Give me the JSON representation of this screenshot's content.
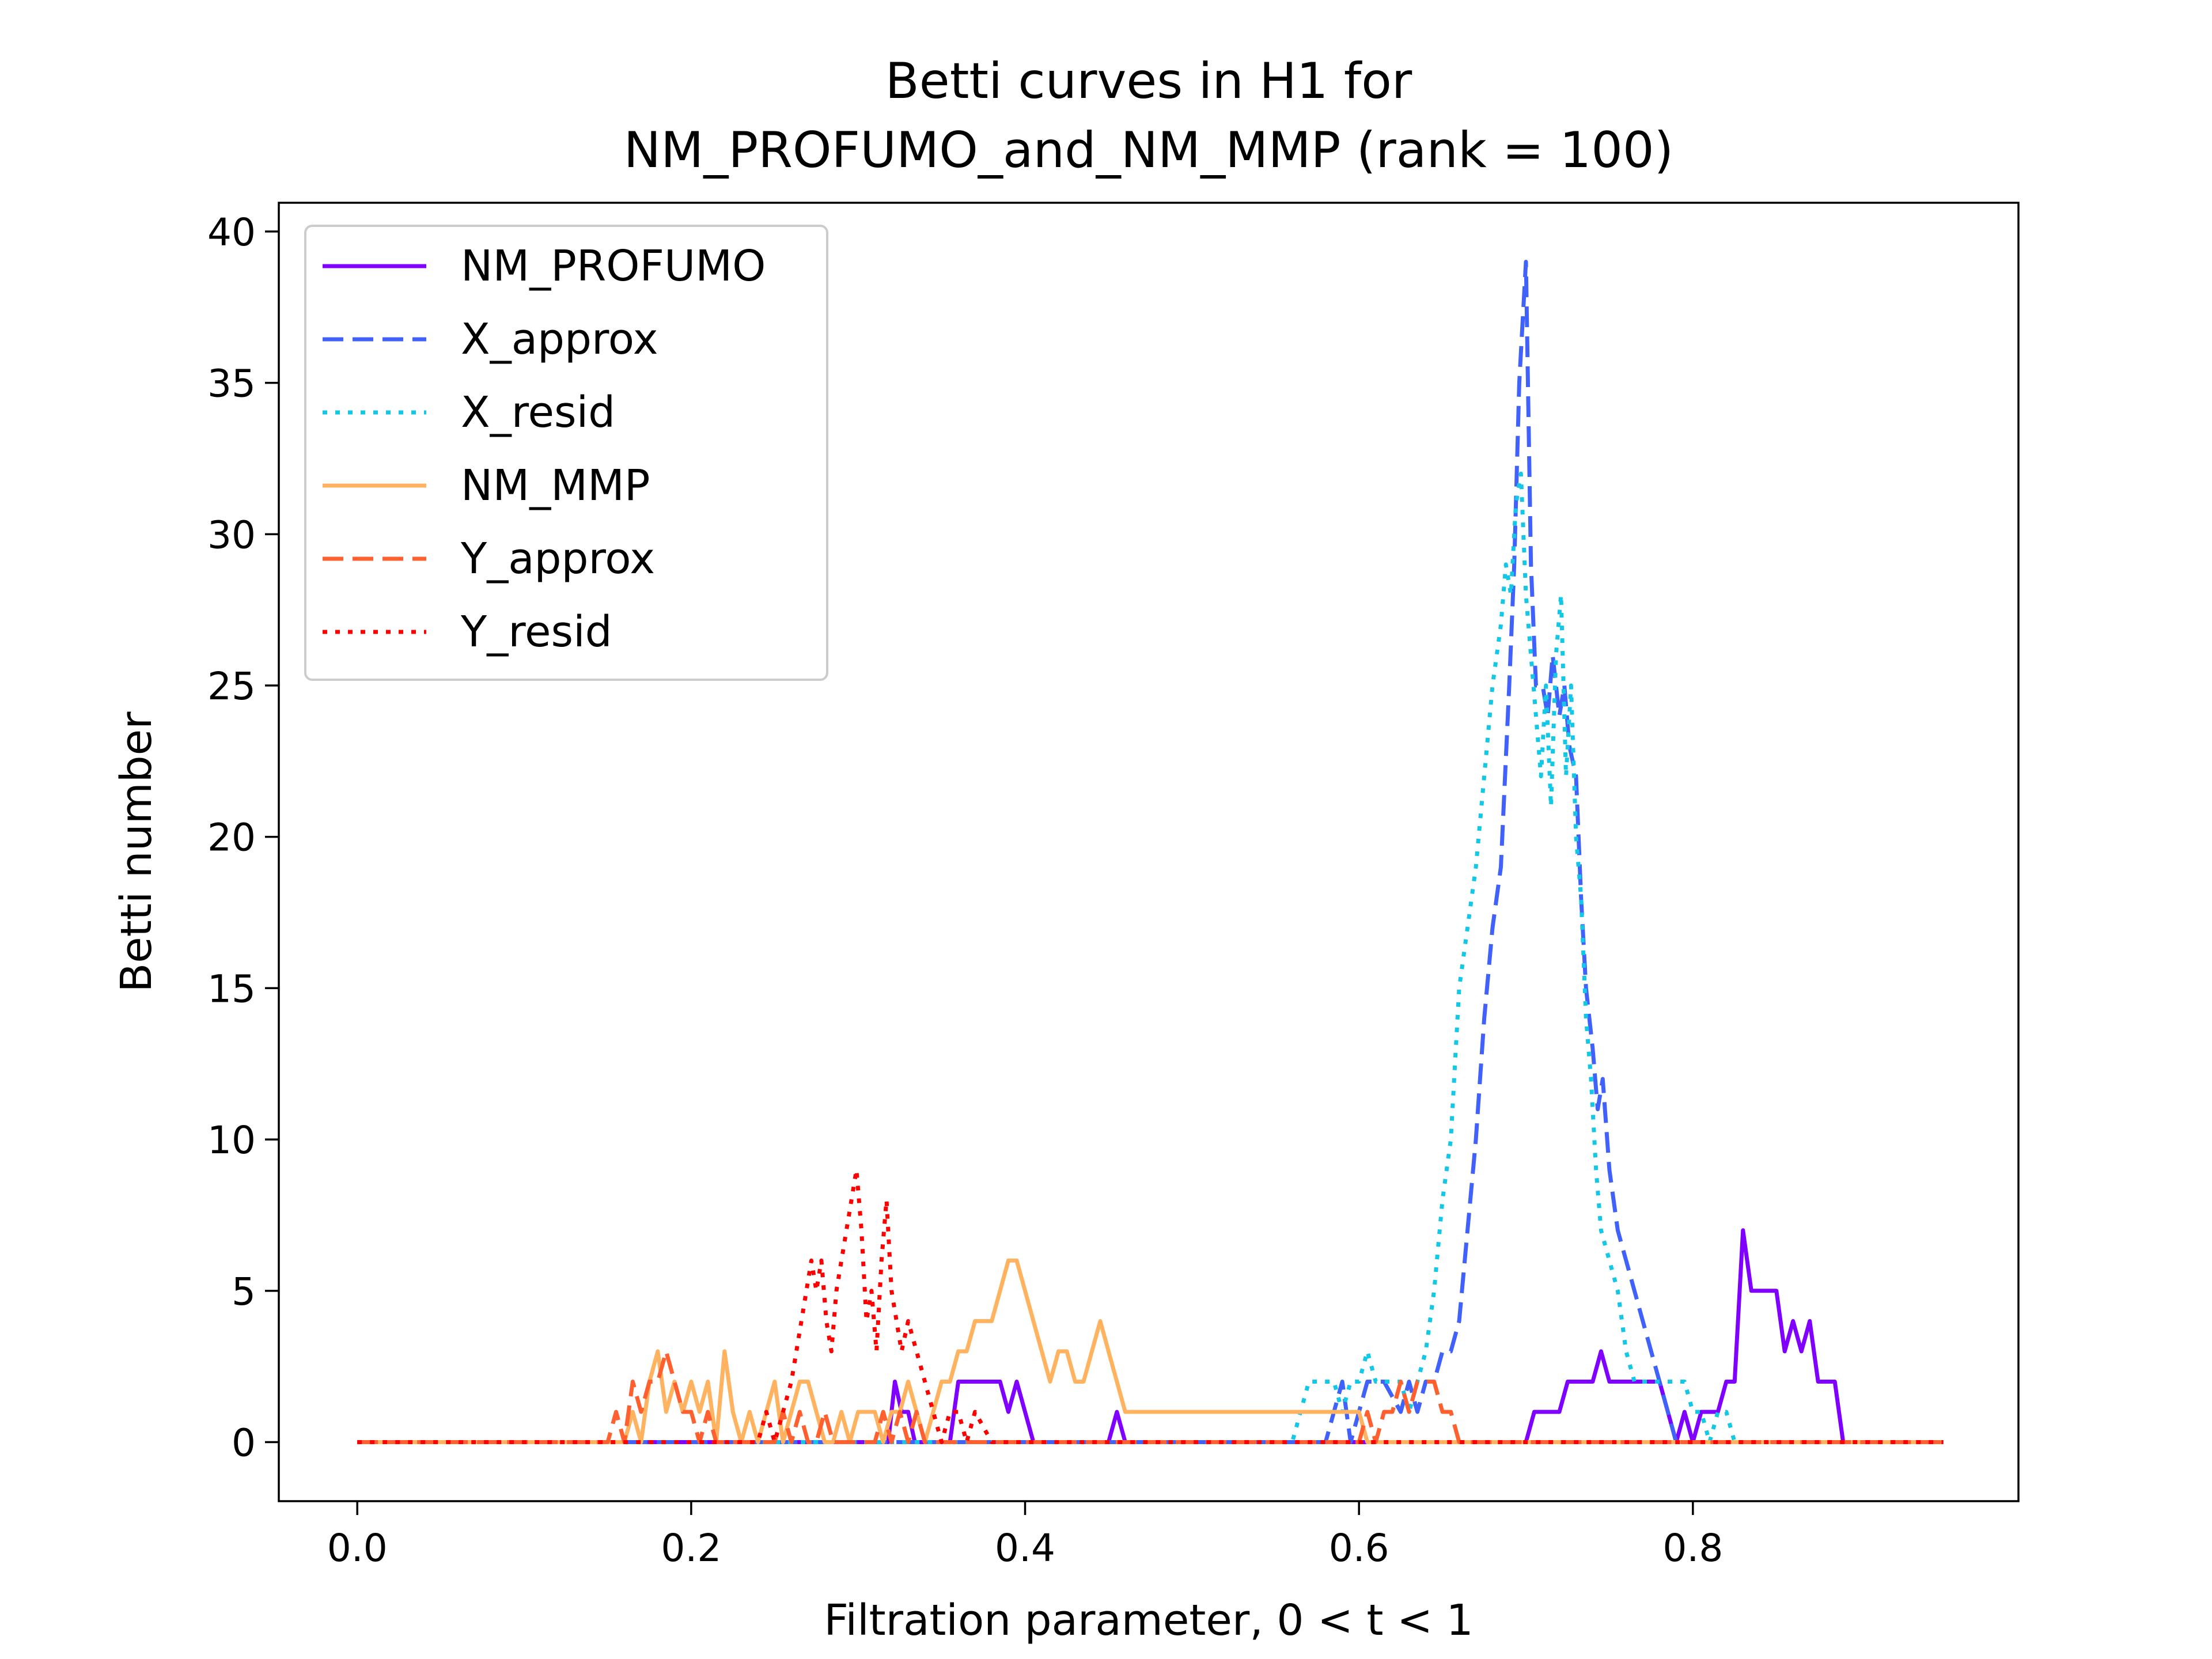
{
  "chart_data": {
    "type": "line",
    "title": "Betti curves in H1 for",
    "subtitle": "NM_PROFUMO_and_NM_MMP (rank = 100)",
    "xlabel": "Filtration parameter, 0 < t < 1",
    "ylabel": "Betti number",
    "xlim": [
      -0.047,
      0.995
    ],
    "ylim": [
      -1.95,
      40.95
    ],
    "xticks": [
      0.0,
      0.2,
      0.4,
      0.6,
      0.8
    ],
    "xtick_labels": [
      "0.0",
      "0.2",
      "0.4",
      "0.6",
      "0.8"
    ],
    "yticks": [
      0,
      5,
      10,
      15,
      20,
      25,
      30,
      35,
      40
    ],
    "ytick_labels": [
      "0",
      "5",
      "10",
      "15",
      "20",
      "25",
      "30",
      "35",
      "40"
    ],
    "grid": false,
    "legend_position": "upper-left",
    "series": [
      {
        "name": "NM_PROFUMO",
        "color": "#8000ff",
        "style": "solid",
        "x": [
          0.0,
          0.318,
          0.322,
          0.326,
          0.33,
          0.334,
          0.355,
          0.36,
          0.365,
          0.37,
          0.375,
          0.38,
          0.385,
          0.39,
          0.395,
          0.4,
          0.405,
          0.45,
          0.455,
          0.46,
          0.465,
          0.6,
          0.65,
          0.7,
          0.705,
          0.72,
          0.725,
          0.74,
          0.745,
          0.75,
          0.755,
          0.77,
          0.775,
          0.78,
          0.785,
          0.79,
          0.795,
          0.8,
          0.805,
          0.815,
          0.82,
          0.825,
          0.83,
          0.835,
          0.85,
          0.855,
          0.86,
          0.865,
          0.87,
          0.875,
          0.885,
          0.89,
          0.95
        ],
        "y": [
          0,
          0,
          2,
          1,
          1,
          0,
          0,
          2,
          2,
          2,
          2,
          2,
          2,
          1,
          2,
          1,
          0,
          0,
          1,
          0,
          0,
          0,
          0,
          0,
          1,
          1,
          2,
          2,
          3,
          2,
          2,
          2,
          2,
          2,
          1,
          0,
          1,
          0,
          1,
          1,
          2,
          2,
          7,
          5,
          5,
          3,
          4,
          3,
          4,
          2,
          2,
          0,
          0
        ]
      },
      {
        "name": "X_approx",
        "color": "#4062fa",
        "style": "dashed",
        "x": [
          0.0,
          0.58,
          0.585,
          0.59,
          0.595,
          0.6,
          0.605,
          0.61,
          0.615,
          0.625,
          0.63,
          0.635,
          0.64,
          0.645,
          0.65,
          0.655,
          0.66,
          0.665,
          0.67,
          0.675,
          0.68,
          0.685,
          0.69,
          0.693,
          0.696,
          0.7,
          0.703,
          0.706,
          0.71,
          0.713,
          0.716,
          0.72,
          0.723,
          0.726,
          0.73,
          0.733,
          0.736,
          0.74,
          0.743,
          0.746,
          0.75,
          0.755,
          0.76,
          0.765,
          0.77,
          0.775,
          0.78,
          0.785,
          0.79,
          0.8,
          0.95
        ],
        "y": [
          0,
          0,
          1,
          2,
          0,
          1,
          2,
          2,
          2,
          1,
          2,
          1,
          2,
          2,
          3,
          3,
          4,
          7,
          10,
          14,
          17,
          19,
          25,
          29,
          35,
          39,
          29,
          25,
          25,
          24,
          26,
          24,
          25,
          23,
          22,
          18,
          15,
          13,
          11,
          12,
          9,
          7,
          6,
          5,
          4,
          3,
          2,
          1,
          0,
          0,
          0
        ]
      },
      {
        "name": "X_resid",
        "color": "#12c8e6",
        "style": "dotted",
        "x": [
          0.0,
          0.56,
          0.565,
          0.57,
          0.575,
          0.58,
          0.585,
          0.59,
          0.595,
          0.6,
          0.605,
          0.61,
          0.615,
          0.62,
          0.625,
          0.63,
          0.635,
          0.64,
          0.645,
          0.65,
          0.655,
          0.66,
          0.665,
          0.67,
          0.675,
          0.68,
          0.685,
          0.688,
          0.691,
          0.694,
          0.697,
          0.7,
          0.703,
          0.706,
          0.709,
          0.712,
          0.715,
          0.718,
          0.721,
          0.724,
          0.727,
          0.73,
          0.733,
          0.736,
          0.739,
          0.742,
          0.745,
          0.75,
          0.755,
          0.76,
          0.765,
          0.77,
          0.775,
          0.78,
          0.785,
          0.79,
          0.795,
          0.8,
          0.805,
          0.81,
          0.815,
          0.82,
          0.825,
          0.83,
          0.835,
          0.84,
          0.845,
          0.95
        ],
        "y": [
          0,
          0,
          1,
          2,
          2,
          2,
          2,
          1,
          2,
          2,
          3,
          2,
          2,
          2,
          2,
          1,
          2,
          3,
          5,
          8,
          10,
          15,
          17,
          19,
          22,
          25,
          27,
          29,
          28,
          31,
          32,
          28,
          26,
          24,
          22,
          25,
          21,
          26,
          28,
          22,
          25,
          20,
          18,
          14,
          12,
          9,
          7,
          6,
          5,
          3,
          2,
          2,
          2,
          2,
          2,
          2,
          2,
          1,
          1,
          0,
          1,
          1,
          0,
          0,
          0,
          0,
          0,
          0
        ]
      },
      {
        "name": "NM_MMP",
        "color": "#ffb360",
        "style": "solid",
        "x": [
          0.0,
          0.16,
          0.165,
          0.17,
          0.175,
          0.18,
          0.185,
          0.19,
          0.195,
          0.2,
          0.205,
          0.21,
          0.215,
          0.22,
          0.225,
          0.23,
          0.235,
          0.24,
          0.245,
          0.25,
          0.255,
          0.26,
          0.265,
          0.27,
          0.275,
          0.28,
          0.285,
          0.29,
          0.295,
          0.3,
          0.305,
          0.31,
          0.315,
          0.32,
          0.325,
          0.33,
          0.335,
          0.34,
          0.345,
          0.35,
          0.355,
          0.36,
          0.365,
          0.37,
          0.375,
          0.38,
          0.385,
          0.39,
          0.395,
          0.4,
          0.405,
          0.41,
          0.415,
          0.42,
          0.425,
          0.43,
          0.435,
          0.44,
          0.445,
          0.45,
          0.455,
          0.46,
          0.465,
          0.6,
          0.605,
          0.95
        ],
        "y": [
          0,
          0,
          1,
          0,
          2,
          3,
          1,
          2,
          1,
          2,
          1,
          2,
          0,
          3,
          1,
          0,
          1,
          0,
          1,
          2,
          0,
          1,
          2,
          2,
          1,
          0,
          0,
          1,
          0,
          1,
          1,
          1,
          0,
          1,
          1,
          2,
          1,
          0,
          1,
          2,
          2,
          3,
          3,
          4,
          4,
          4,
          5,
          6,
          6,
          5,
          4,
          3,
          2,
          3,
          3,
          2,
          2,
          3,
          4,
          3,
          2,
          1,
          1,
          1,
          0,
          0
        ]
      },
      {
        "name": "Y_approx",
        "color": "#ff6030",
        "style": "dashed",
        "x": [
          0.0,
          0.15,
          0.155,
          0.16,
          0.165,
          0.17,
          0.175,
          0.18,
          0.185,
          0.19,
          0.195,
          0.2,
          0.205,
          0.21,
          0.215,
          0.22,
          0.25,
          0.255,
          0.26,
          0.265,
          0.27,
          0.275,
          0.28,
          0.285,
          0.29,
          0.3,
          0.31,
          0.315,
          0.32,
          0.325,
          0.33,
          0.335,
          0.34,
          0.345,
          0.35,
          0.6,
          0.605,
          0.61,
          0.615,
          0.62,
          0.625,
          0.63,
          0.635,
          0.64,
          0.645,
          0.65,
          0.655,
          0.66,
          0.95
        ],
        "y": [
          0,
          0,
          1,
          0,
          2,
          1,
          2,
          2,
          3,
          2,
          1,
          1,
          0,
          1,
          0,
          0,
          0,
          1,
          0,
          1,
          0,
          0,
          1,
          0,
          0,
          0,
          0,
          1,
          0,
          1,
          0,
          1,
          0,
          0,
          0,
          0,
          1,
          0,
          1,
          1,
          2,
          1,
          2,
          2,
          2,
          1,
          1,
          0,
          0
        ]
      },
      {
        "name": "Y_resid",
        "color": "#ff0000",
        "style": "dotted",
        "x": [
          0.0,
          0.24,
          0.245,
          0.25,
          0.255,
          0.26,
          0.263,
          0.266,
          0.269,
          0.272,
          0.275,
          0.278,
          0.281,
          0.284,
          0.287,
          0.29,
          0.293,
          0.296,
          0.299,
          0.302,
          0.305,
          0.308,
          0.311,
          0.314,
          0.317,
          0.32,
          0.323,
          0.326,
          0.33,
          0.335,
          0.34,
          0.345,
          0.35,
          0.355,
          0.36,
          0.365,
          0.37,
          0.38,
          0.95
        ],
        "y": [
          0,
          0,
          1,
          0,
          1,
          2,
          3,
          4,
          5,
          6,
          5,
          6,
          4,
          3,
          5,
          6,
          7,
          8,
          9,
          7,
          4,
          5,
          3,
          6,
          8,
          5,
          4,
          3,
          4,
          3,
          2,
          1,
          0,
          1,
          1,
          0,
          1,
          0,
          0
        ]
      }
    ]
  }
}
